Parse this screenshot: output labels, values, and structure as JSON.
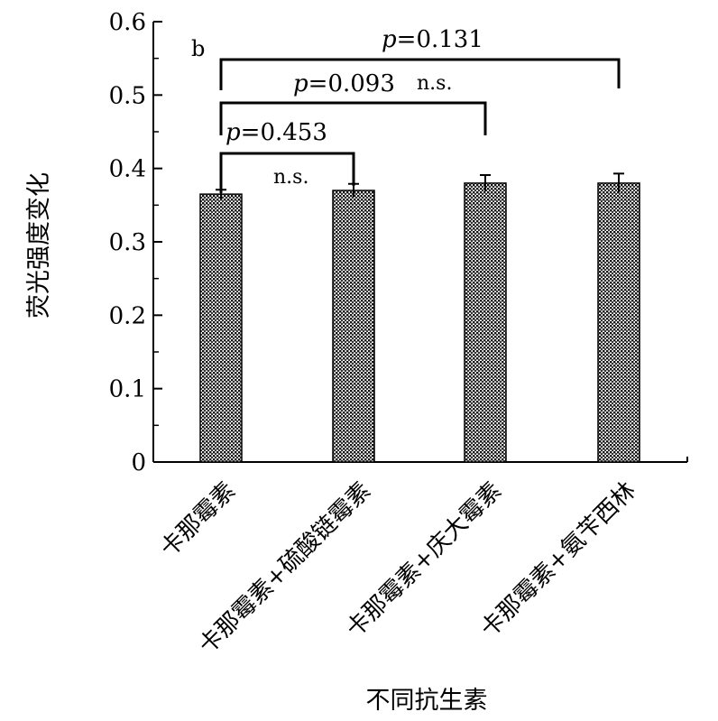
{
  "chart_data": {
    "type": "bar",
    "panel_label": "b",
    "title": "",
    "xlabel": "不同抗生素",
    "ylabel": "荧光强度变化",
    "categories": [
      "卡那霉素",
      "卡那霉素+硫酸链霉素",
      "卡那霉素+庆大霉素",
      "卡那霉素+氨苄西林"
    ],
    "values": [
      0.365,
      0.37,
      0.38,
      0.38
    ],
    "errors": [
      0.006,
      0.009,
      0.011,
      0.013
    ],
    "ylim": [
      0,
      0.6
    ],
    "yticks": [
      "0",
      "0.1",
      "0.2",
      "0.3",
      "0.4",
      "0.5",
      "0.6"
    ],
    "grid": false,
    "bar_pattern": "checkered",
    "comparisons": [
      {
        "from": 0,
        "to": 1,
        "p_label": "p",
        "p_value": "=0.453",
        "significance": "n.s."
      },
      {
        "from": 0,
        "to": 2,
        "p_label": "p",
        "p_value": "=0.093",
        "significance": "n.s."
      },
      {
        "from": 0,
        "to": 3,
        "p_label": "p",
        "p_value": "=0.131",
        "significance": ""
      }
    ]
  }
}
